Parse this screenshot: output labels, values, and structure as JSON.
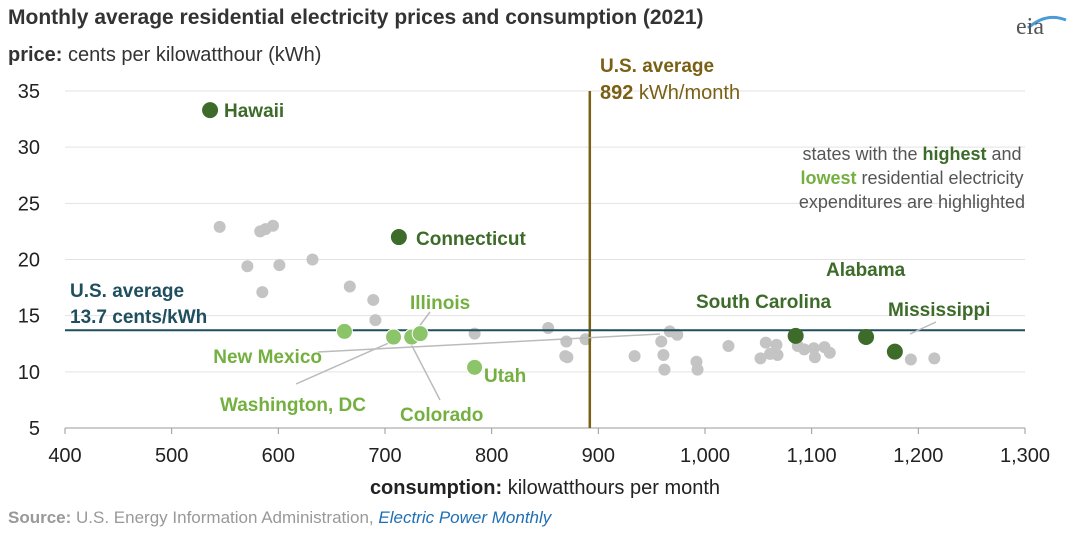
{
  "header": {
    "title": "Monthly average residential electricity prices and consumption (2021)",
    "ylabel_bold": "price:",
    "ylabel_rest": " cents per kilowatthour (kWh)",
    "logo": "eia"
  },
  "colors": {
    "dark_green": "#3d6b2a",
    "light_green": "#8cc46a",
    "gray": "#c4c4c4",
    "avg_price_line": "#1f4e5f",
    "avg_consumption_line": "#7a6014",
    "light_green_text": "#74b040"
  },
  "annotations": {
    "vline_title": "U.S. average",
    "vline_value": "892",
    "vline_unit": " kWh/month",
    "hline_title": "U.S. average",
    "hline_value": "13.7 cents/kWh",
    "note_line1": "states with the ",
    "note_highest": "highest",
    "note_and": " and",
    "note_lowest": "lowest",
    "note_line2_rest": " residential electricity",
    "note_line3": "expenditures are highlighted"
  },
  "footer": {
    "source_label": "Source:",
    "source_text": " U.S. Energy Information Administration, ",
    "source_link": "Electric Power Monthly"
  },
  "chart_data": {
    "type": "scatter",
    "title": "Monthly average residential electricity prices and consumption (2021)",
    "xlabel_bold": "consumption:",
    "xlabel_rest": " kilowatthours per month",
    "ylabel": "price: cents per kilowatthour (kWh)",
    "xlim": [
      400,
      1300
    ],
    "ylim": [
      5,
      35
    ],
    "xticks": [
      400,
      500,
      600,
      700,
      800,
      900,
      1000,
      1100,
      1200,
      1300
    ],
    "xtick_labels": [
      "400",
      "500",
      "600",
      "700",
      "800",
      "900",
      "1,000",
      "1,100",
      "1,200",
      "1,300"
    ],
    "yticks": [
      5,
      10,
      15,
      20,
      25,
      30,
      35
    ],
    "grid": "horizontal",
    "reference_lines": {
      "x": 892,
      "y": 13.7
    },
    "highlighted_highest": [
      {
        "name": "Hawaii",
        "x": 536,
        "y": 33.3
      },
      {
        "name": "Connecticut",
        "x": 713,
        "y": 22.0
      },
      {
        "name": "South Carolina",
        "x": 1085,
        "y": 13.2
      },
      {
        "name": "Alabama",
        "x": 1151,
        "y": 13.1
      },
      {
        "name": "Mississippi",
        "x": 1178,
        "y": 11.8
      }
    ],
    "highlighted_lowest": [
      {
        "name": "New Mexico",
        "x": 662,
        "y": 13.6
      },
      {
        "name": "Washington, DC",
        "x": 708,
        "y": 13.1
      },
      {
        "name": "Colorado",
        "x": 725,
        "y": 13.1
      },
      {
        "name": "Illinois",
        "x": 733,
        "y": 13.4
      },
      {
        "name": "Utah",
        "x": 784,
        "y": 10.4
      }
    ],
    "other_states": [
      [
        545,
        22.9
      ],
      [
        583,
        22.5
      ],
      [
        588,
        22.7
      ],
      [
        595,
        23.0
      ],
      [
        571,
        19.4
      ],
      [
        601,
        19.5
      ],
      [
        632,
        20.0
      ],
      [
        585,
        17.1
      ],
      [
        667,
        17.6
      ],
      [
        689,
        16.4
      ],
      [
        691,
        14.6
      ],
      [
        784,
        13.4
      ],
      [
        853,
        13.9
      ],
      [
        870,
        12.7
      ],
      [
        869,
        11.4
      ],
      [
        871,
        11.3
      ],
      [
        888,
        12.9
      ],
      [
        934,
        11.4
      ],
      [
        959,
        12.7
      ],
      [
        961,
        11.5
      ],
      [
        962,
        10.2
      ],
      [
        967,
        13.6
      ],
      [
        974,
        13.3
      ],
      [
        992,
        10.9
      ],
      [
        993,
        10.2
      ],
      [
        1022,
        12.3
      ],
      [
        1052,
        11.2
      ],
      [
        1057,
        12.6
      ],
      [
        1061,
        11.6
      ],
      [
        1067,
        12.4
      ],
      [
        1068,
        11.5
      ],
      [
        1087,
        12.3
      ],
      [
        1093,
        12.0
      ],
      [
        1102,
        12.1
      ],
      [
        1103,
        11.3
      ],
      [
        1112,
        12.2
      ],
      [
        1117,
        11.7
      ],
      [
        1193,
        11.1
      ],
      [
        1215,
        11.2
      ]
    ]
  }
}
